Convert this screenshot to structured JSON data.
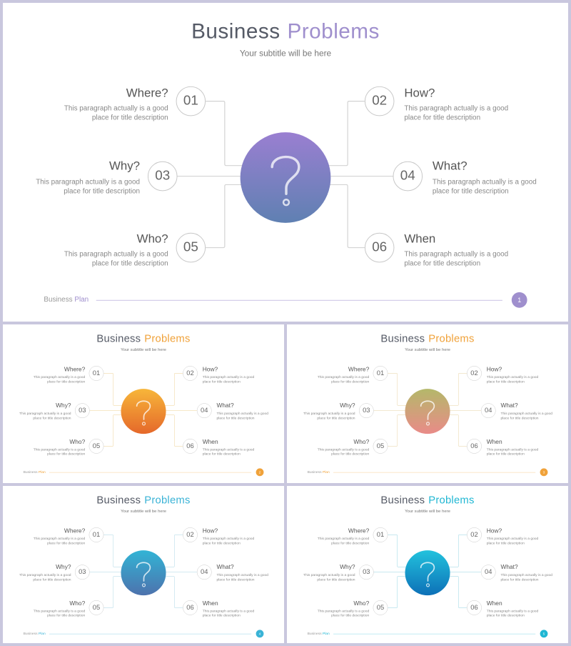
{
  "slides": [
    {
      "title_a": "Business",
      "title_b": "Problems",
      "subtitle": "Your subtitle will be here",
      "footer_a": "Business",
      "footer_b": "Plan",
      "page": "1",
      "accent": "#9f8fcd",
      "center_top": "#9a7fd1",
      "center_bottom": "#5f80b2",
      "line_color": "#d3d3d3"
    },
    {
      "title_a": "Business",
      "title_b": "Problems",
      "subtitle": "Your subtitle will be here",
      "footer_a": "Business",
      "footer_b": "Plan",
      "page": "2",
      "accent": "#f0a23a",
      "center_top": "#f7b63a",
      "center_bottom": "#e5682a",
      "line_color": "#f1d9a8"
    },
    {
      "title_a": "Business",
      "title_b": "Problems",
      "subtitle": "Your subtitle will be here",
      "footer_a": "Business",
      "footer_b": "Plan",
      "page": "3",
      "accent": "#f0a23a",
      "center_top": "#b4b86a",
      "center_bottom": "#e98b88",
      "line_color": "#ecdab3"
    },
    {
      "title_a": "Business",
      "title_b": "Problems",
      "subtitle": "Your subtitle will be here",
      "footer_a": "Business",
      "footer_b": "Plan",
      "page": "4",
      "accent": "#3ab3d6",
      "center_top": "#32b4d5",
      "center_bottom": "#4d72ad",
      "line_color": "#b9dde9"
    },
    {
      "title_a": "Business",
      "title_b": "Problems",
      "subtitle": "Your subtitle will be here",
      "footer_a": "Business",
      "footer_b": "Plan",
      "page": "5",
      "accent": "#20b7d3",
      "center_top": "#22c2dd",
      "center_bottom": "#0d70b7",
      "line_color": "#a7dbe8"
    }
  ],
  "items": [
    {
      "num": "01",
      "label": "Where?",
      "desc_line1": "This paragraph  actually is a good",
      "desc_line2": "place for title description"
    },
    {
      "num": "02",
      "label": "How?",
      "desc_line1": "This paragraph  actually is a good",
      "desc_line2": "place for title description"
    },
    {
      "num": "03",
      "label": "Why?",
      "desc_line1": "This paragraph  actually is a good",
      "desc_line2": "place for title description"
    },
    {
      "num": "04",
      "label": "What?",
      "desc_line1": "This paragraph  actually is a good",
      "desc_line2": "place for title description"
    },
    {
      "num": "05",
      "label": "Who?",
      "desc_line1": "This paragraph  actually is a good",
      "desc_line2": "place for title description"
    },
    {
      "num": "06",
      "label": "When",
      "desc_line1": "This paragraph  actually is a good",
      "desc_line2": "place for title description"
    }
  ],
  "icons": {
    "center": "question-mark-icon"
  }
}
